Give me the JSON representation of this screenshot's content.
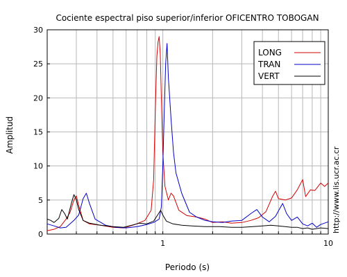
{
  "chart_data": {
    "type": "line",
    "title": "Cociente espectral piso superior/inferior OFICENTRO TOBOGAN",
    "xlabel": "Periodo (s)",
    "ylabel": "Amplitud",
    "x_scale": "log",
    "xlim": [
      0.2,
      10
    ],
    "ylim": [
      0,
      30
    ],
    "x_tick_labels": [
      {
        "value": 1,
        "label": "1"
      },
      {
        "value": 10,
        "label": "10"
      }
    ],
    "y_ticks": [
      0,
      5,
      10,
      15,
      20,
      25,
      30
    ],
    "grid": true,
    "legend_position": "top-right",
    "series": [
      {
        "name": "LONG",
        "color": "#d40000",
        "points": [
          [
            0.2,
            0.5
          ],
          [
            0.22,
            0.7
          ],
          [
            0.24,
            1.1
          ],
          [
            0.26,
            2.2
          ],
          [
            0.275,
            3.2
          ],
          [
            0.29,
            5.0
          ],
          [
            0.3,
            5.6
          ],
          [
            0.31,
            4.2
          ],
          [
            0.33,
            2.0
          ],
          [
            0.36,
            1.5
          ],
          [
            0.42,
            1.3
          ],
          [
            0.5,
            1.0
          ],
          [
            0.58,
            0.9
          ],
          [
            0.68,
            1.4
          ],
          [
            0.78,
            2.0
          ],
          [
            0.85,
            3.5
          ],
          [
            0.88,
            8.0
          ],
          [
            0.9,
            18.0
          ],
          [
            0.92,
            26.0
          ],
          [
            0.935,
            28.2
          ],
          [
            0.95,
            29.0
          ],
          [
            0.965,
            26.5
          ],
          [
            0.98,
            20.0
          ],
          [
            1.0,
            12.0
          ],
          [
            1.03,
            7.0
          ],
          [
            1.08,
            5.0
          ],
          [
            1.12,
            6.0
          ],
          [
            1.16,
            5.6
          ],
          [
            1.25,
            3.5
          ],
          [
            1.4,
            2.7
          ],
          [
            1.6,
            2.5
          ],
          [
            1.8,
            2.2
          ],
          [
            2.0,
            1.7
          ],
          [
            2.3,
            1.8
          ],
          [
            2.6,
            1.6
          ],
          [
            3.0,
            1.7
          ],
          [
            3.4,
            2.0
          ],
          [
            3.8,
            2.4
          ],
          [
            4.2,
            3.3
          ],
          [
            4.6,
            5.5
          ],
          [
            4.8,
            6.3
          ],
          [
            5.0,
            5.2
          ],
          [
            5.5,
            5.0
          ],
          [
            6.0,
            5.3
          ],
          [
            6.5,
            6.5
          ],
          [
            7.0,
            8.0
          ],
          [
            7.3,
            5.5
          ],
          [
            7.8,
            6.5
          ],
          [
            8.3,
            6.4
          ],
          [
            9.0,
            7.5
          ],
          [
            9.5,
            7.0
          ],
          [
            10.0,
            7.5
          ]
        ]
      },
      {
        "name": "TRAN",
        "color": "#0000c8",
        "points": [
          [
            0.2,
            1.5
          ],
          [
            0.22,
            1.2
          ],
          [
            0.24,
            0.9
          ],
          [
            0.26,
            1.0
          ],
          [
            0.29,
            2.0
          ],
          [
            0.31,
            2.8
          ],
          [
            0.33,
            5.2
          ],
          [
            0.345,
            6.0
          ],
          [
            0.36,
            4.5
          ],
          [
            0.39,
            2.2
          ],
          [
            0.45,
            1.3
          ],
          [
            0.52,
            1.0
          ],
          [
            0.6,
            0.9
          ],
          [
            0.7,
            1.1
          ],
          [
            0.8,
            1.4
          ],
          [
            0.88,
            1.7
          ],
          [
            0.95,
            2.2
          ],
          [
            0.98,
            4.0
          ],
          [
            1.0,
            10.0
          ],
          [
            1.02,
            18.0
          ],
          [
            1.04,
            25.0
          ],
          [
            1.06,
            28.0
          ],
          [
            1.08,
            23.0
          ],
          [
            1.12,
            17.0
          ],
          [
            1.16,
            12.0
          ],
          [
            1.2,
            9.0
          ],
          [
            1.3,
            6.0
          ],
          [
            1.45,
            3.2
          ],
          [
            1.6,
            2.5
          ],
          [
            1.8,
            2.0
          ],
          [
            2.0,
            1.8
          ],
          [
            2.3,
            1.7
          ],
          [
            2.6,
            1.9
          ],
          [
            3.0,
            2.0
          ],
          [
            3.4,
            3.0
          ],
          [
            3.7,
            3.6
          ],
          [
            4.0,
            2.5
          ],
          [
            4.4,
            1.8
          ],
          [
            4.8,
            2.6
          ],
          [
            5.0,
            3.4
          ],
          [
            5.3,
            4.5
          ],
          [
            5.6,
            3.0
          ],
          [
            6.0,
            2.0
          ],
          [
            6.5,
            2.5
          ],
          [
            7.0,
            1.5
          ],
          [
            7.5,
            1.2
          ],
          [
            8.0,
            1.6
          ],
          [
            8.5,
            1.0
          ],
          [
            9.0,
            1.4
          ],
          [
            10.0,
            1.8
          ]
        ]
      },
      {
        "name": "VERT",
        "color": "#000000",
        "points": [
          [
            0.2,
            2.2
          ],
          [
            0.21,
            2.0
          ],
          [
            0.22,
            1.7
          ],
          [
            0.235,
            2.3
          ],
          [
            0.245,
            3.6
          ],
          [
            0.255,
            3.0
          ],
          [
            0.265,
            2.2
          ],
          [
            0.28,
            4.5
          ],
          [
            0.29,
            5.8
          ],
          [
            0.3,
            5.0
          ],
          [
            0.31,
            3.6
          ],
          [
            0.33,
            2.0
          ],
          [
            0.36,
            1.6
          ],
          [
            0.42,
            1.3
          ],
          [
            0.5,
            1.1
          ],
          [
            0.58,
            1.0
          ],
          [
            0.65,
            1.3
          ],
          [
            0.72,
            1.6
          ],
          [
            0.8,
            1.5
          ],
          [
            0.88,
            1.9
          ],
          [
            0.93,
            2.8
          ],
          [
            0.97,
            3.5
          ],
          [
            1.0,
            2.8
          ],
          [
            1.05,
            1.9
          ],
          [
            1.15,
            1.5
          ],
          [
            1.3,
            1.3
          ],
          [
            1.5,
            1.2
          ],
          [
            1.8,
            1.1
          ],
          [
            2.2,
            1.1
          ],
          [
            2.6,
            1.0
          ],
          [
            3.0,
            1.0
          ],
          [
            3.5,
            1.1
          ],
          [
            4.0,
            1.2
          ],
          [
            4.5,
            1.3
          ],
          [
            5.0,
            1.2
          ],
          [
            5.5,
            1.1
          ],
          [
            6.0,
            1.0
          ],
          [
            6.5,
            1.0
          ],
          [
            7.0,
            0.8
          ],
          [
            7.5,
            0.9
          ],
          [
            8.0,
            0.7
          ],
          [
            9.0,
            0.9
          ],
          [
            10.0,
            0.8
          ]
        ]
      }
    ]
  },
  "side_text": "http://www.lis.ucr.ac.cr"
}
